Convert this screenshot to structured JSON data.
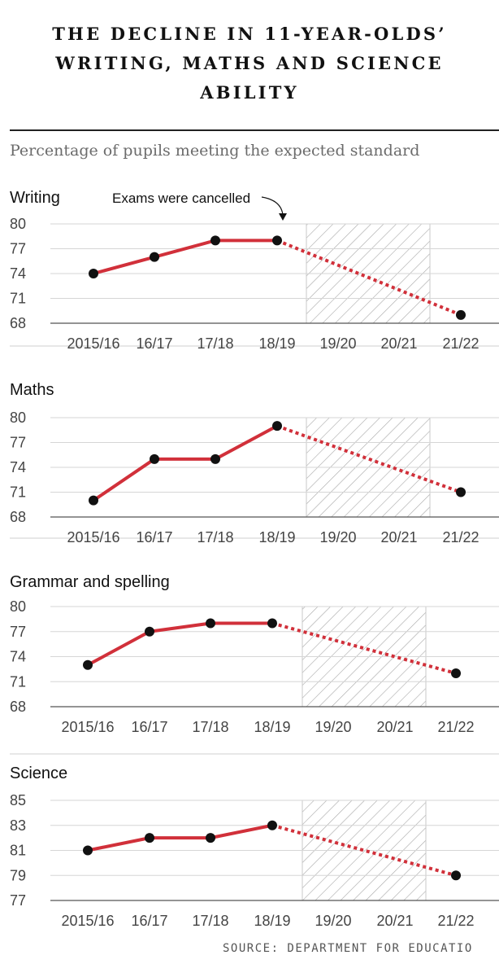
{
  "title_lines": [
    "THE DECLINE IN 11-YEAR-OLDS’",
    "WRITING, MATHS AND SCIENCE",
    "ABILITY"
  ],
  "subtitle": "Percentage of pupils meeting the expected standard",
  "source": "SOURCE: DEPARTMENT FOR EDUCATIO",
  "colors": {
    "line": "#d1303a",
    "point": "#111111",
    "hatch": "#9a9a9a"
  },
  "chart_data": [
    {
      "type": "line",
      "title": "Writing",
      "annotation": "Exams were cancelled",
      "categories": [
        "2015/16",
        "16/17",
        "17/18",
        "18/19",
        "19/20",
        "20/21",
        "21/22"
      ],
      "values": [
        74,
        76,
        78,
        78,
        null,
        null,
        69
      ],
      "yticks": [
        80,
        77,
        74,
        71,
        68
      ],
      "ylim": [
        68,
        80
      ],
      "shaded_categories": [
        "19/20",
        "20/21"
      ],
      "dotted_segment": [
        "18/19",
        "21/22"
      ]
    },
    {
      "type": "line",
      "title": "Maths",
      "categories": [
        "2015/16",
        "16/17",
        "17/18",
        "18/19",
        "19/20",
        "20/21",
        "21/22"
      ],
      "values": [
        70,
        75,
        75,
        79,
        null,
        null,
        71
      ],
      "yticks": [
        80,
        77,
        74,
        71,
        68
      ],
      "ylim": [
        68,
        80
      ],
      "shaded_categories": [
        "19/20",
        "20/21"
      ],
      "dotted_segment": [
        "18/19",
        "21/22"
      ]
    },
    {
      "type": "line",
      "title": "Grammar and spelling",
      "categories": [
        "2015/16",
        "16/17",
        "17/18",
        "18/19",
        "19/20",
        "20/21",
        "21/22"
      ],
      "values": [
        73,
        77,
        78,
        78,
        null,
        null,
        72
      ],
      "yticks": [
        80,
        77,
        74,
        71,
        68
      ],
      "ylim": [
        68,
        80
      ],
      "shaded_categories": [
        "19/20",
        "20/21"
      ],
      "dotted_segment": [
        "18/19",
        "21/22"
      ]
    },
    {
      "type": "line",
      "title": "Science",
      "categories": [
        "2015/16",
        "16/17",
        "17/18",
        "18/19",
        "19/20",
        "20/21",
        "21/22"
      ],
      "values": [
        81,
        82,
        82,
        83,
        null,
        null,
        79
      ],
      "yticks": [
        85,
        83,
        81,
        79,
        77
      ],
      "ylim": [
        77,
        85
      ],
      "shaded_categories": [
        "19/20",
        "20/21"
      ],
      "dotted_segment": [
        "18/19",
        "21/22"
      ]
    }
  ]
}
